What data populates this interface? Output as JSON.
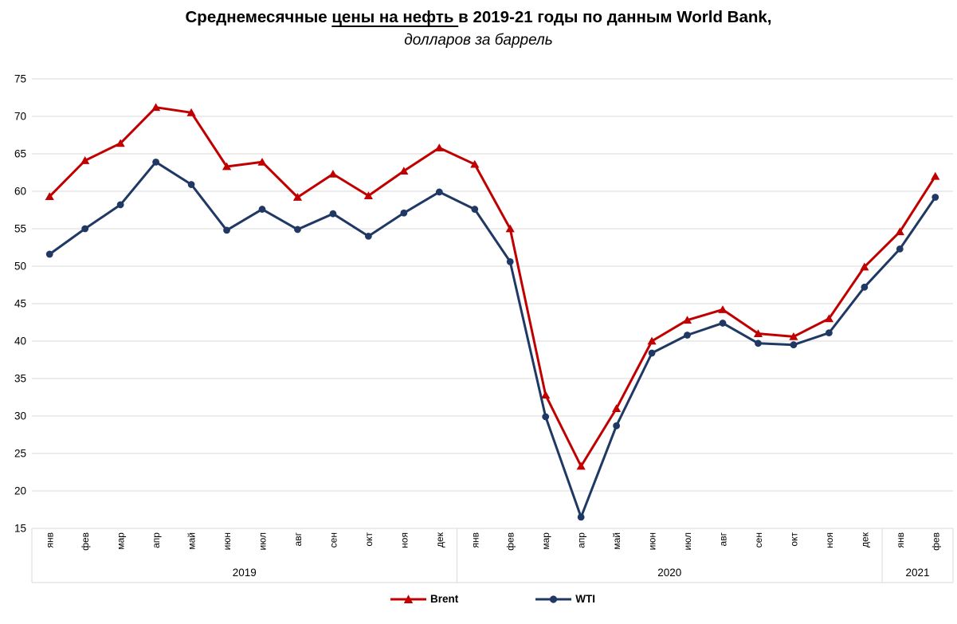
{
  "title": {
    "part1": "Среднемесячные ",
    "part2_underlined": "цены на нефть ",
    "part3": "в 2019-21 годы по данным World Bank,",
    "subtitle": "долларов за баррель"
  },
  "legend": [
    {
      "label": "Brent",
      "color": "#C00000",
      "marker": "triangle"
    },
    {
      "label": "WTI",
      "color": "#1F3864",
      "marker": "circle"
    }
  ],
  "colors": {
    "brent": "#C00000",
    "wti": "#1F3864",
    "gridline": "#D9D9D9",
    "axis_text": "#000000"
  },
  "chart_data": {
    "type": "line",
    "title": "Среднемесячные цены на нефть в 2019-21 годы по данным World Bank",
    "subtitle": "долларов за баррель",
    "ylabel": "долларов за баррель",
    "ylim": [
      15,
      75
    ],
    "yticks": [
      15,
      20,
      25,
      30,
      35,
      40,
      45,
      50,
      55,
      60,
      65,
      70,
      75
    ],
    "grid": true,
    "legend_position": "bottom",
    "x_groups": [
      {
        "year": "2019",
        "months": [
          "янв",
          "фев",
          "мар",
          "апр",
          "май",
          "июн",
          "июл",
          "авг",
          "сен",
          "окт",
          "ноя",
          "дек"
        ]
      },
      {
        "year": "2020",
        "months": [
          "янв",
          "фев",
          "мар",
          "апр",
          "май",
          "июн",
          "июл",
          "авг",
          "сен",
          "окт",
          "ноя",
          "дек"
        ]
      },
      {
        "year": "2021",
        "months": [
          "янв",
          "фев"
        ]
      }
    ],
    "series": [
      {
        "name": "Brent",
        "color": "#C00000",
        "marker": "triangle",
        "values": [
          59.3,
          64.1,
          66.4,
          71.2,
          70.5,
          63.3,
          63.9,
          59.2,
          62.3,
          59.4,
          62.7,
          65.8,
          63.6,
          55.0,
          32.8,
          23.3,
          31.0,
          40.0,
          42.8,
          44.2,
          41.0,
          40.6,
          43.0,
          49.9,
          54.6,
          62.0
        ]
      },
      {
        "name": "WTI",
        "color": "#1F3864",
        "marker": "circle",
        "values": [
          51.6,
          55.0,
          58.2,
          63.9,
          60.9,
          54.8,
          57.6,
          54.9,
          57.0,
          54.0,
          57.1,
          59.9,
          57.6,
          50.6,
          29.9,
          16.5,
          28.7,
          38.4,
          40.8,
          42.4,
          39.7,
          39.5,
          41.1,
          47.2,
          52.3,
          59.2
        ]
      }
    ]
  }
}
